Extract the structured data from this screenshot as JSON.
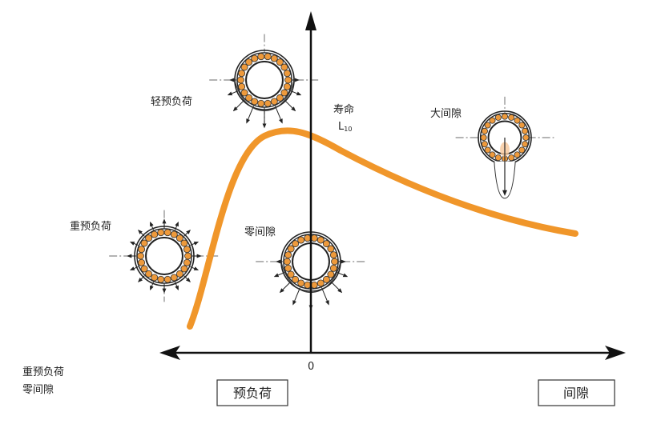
{
  "labels": {
    "light_preload": "轻预负荷",
    "life": "寿命",
    "life_symbol": "L",
    "life_subscript": "10",
    "large_clearance": "大间隙",
    "heavy_preload": "重预负荷",
    "zero_clearance": "零间隙",
    "origin": "0",
    "legend_line1": "重预负荷",
    "legend_line2": "零间隙"
  },
  "axis_boxes": {
    "left": "预负荷",
    "right": "间隙"
  },
  "colors": {
    "curve": "#f0962a",
    "ball": "#ee9a3c",
    "axis": "#111111"
  }
}
